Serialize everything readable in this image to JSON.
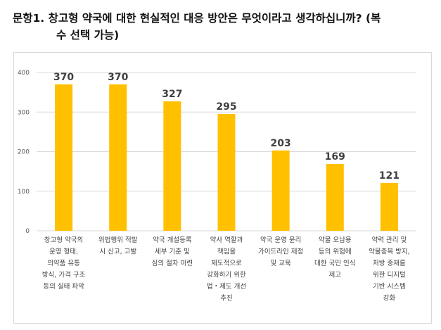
{
  "title": {
    "line1": "문항1. 창고형 약국에 대한 현실적인 대응 방안은 무엇이라고 생각하십니까? (복",
    "line2": "수 선택 가능)"
  },
  "colors": {
    "bar": "#FFC000",
    "grid": "#d9d9d9"
  },
  "chart_data": {
    "type": "bar",
    "title": "문항1. 창고형 약국에 대한 현실적인 대응 방안은 무엇이라고 생각하십니까? (복수 선택 가능)",
    "xlabel": "",
    "ylabel": "",
    "ylim": [
      0,
      400
    ],
    "yticks": [
      0,
      100,
      200,
      300,
      400
    ],
    "grid": true,
    "categories": [
      [
        "창고형 약국의",
        "운영 형태,",
        "의약품 유통",
        "방식, 가격 구조",
        "등의 실태 파악"
      ],
      [
        "위법행위 적발",
        "시 신고, 고발"
      ],
      [
        "약국 개설등록",
        "세부 기준 및",
        "심의 절차 마련"
      ],
      [
        "약사 역할과",
        "책임을",
        "제도적으로",
        "강화하기 위한",
        "법・제도 개선",
        "추진"
      ],
      [
        "약국 운영 윤리",
        "가이드라인 제정",
        "및 교육"
      ],
      [
        "약물 오남용",
        "등의 위험에",
        "대한 국민 인식",
        "제고"
      ],
      [
        "약력 관리 및",
        "약물중복 방지,",
        "처방 중재를",
        "위한 디지털",
        "기반 시스템",
        "강화"
      ]
    ],
    "values": [
      370,
      370,
      327,
      295,
      203,
      169,
      121
    ]
  }
}
